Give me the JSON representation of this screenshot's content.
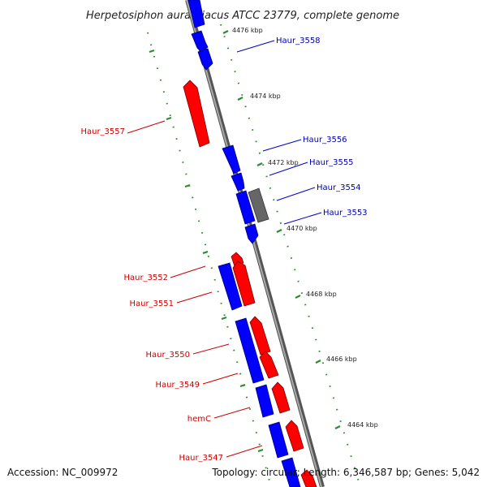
{
  "title": "Herpetosiphon aurantiacus ATCC 23779, complete genome",
  "footer": {
    "accession": "Accession: NC_009972",
    "summary": "Topology: circular; Length: 6,346,587 bp; Genes: 5,042"
  },
  "colors": {
    "forward_gene": "#ff0000",
    "reverse_gene": "#0000ff",
    "other_feature": "#666666",
    "backbone": "#888888",
    "ticks": "#2e8b2e",
    "forward_label": "#cc0000",
    "reverse_label": "#0000aa"
  },
  "ruler": [
    "4476 kbp",
    "4474 kbp",
    "4472 kbp",
    "4470 kbp",
    "4468 kbp",
    "4466 kbp",
    "4464 kbp"
  ],
  "genes": {
    "reverse": [
      "Haur_3558",
      "Haur_3556",
      "Haur_3555",
      "Haur_3554",
      "Haur_3553"
    ],
    "forward": [
      "Haur_3557",
      "Haur_3552",
      "Haur_3551",
      "Haur_3550",
      "Haur_3549",
      "hemC",
      "Haur_3547"
    ]
  }
}
